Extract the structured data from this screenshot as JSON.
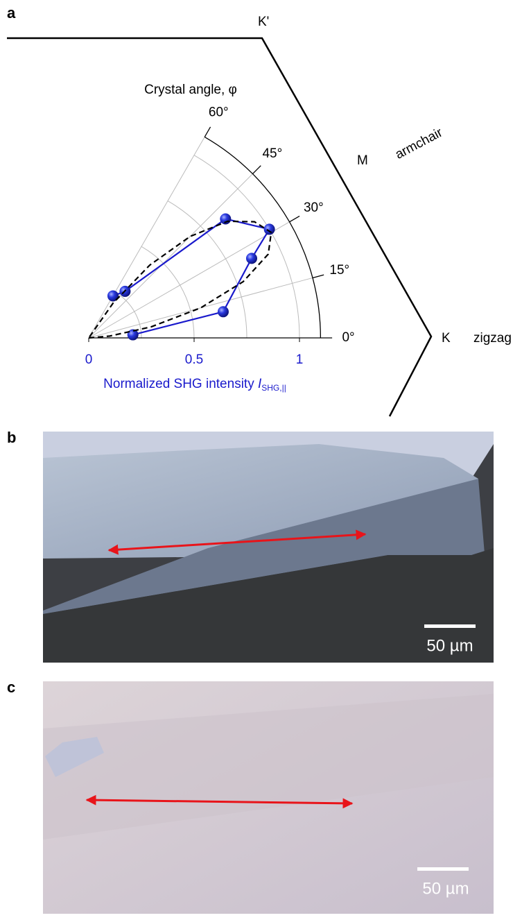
{
  "panel_a": {
    "label": "a",
    "hexagon": {
      "k_prime": "K'",
      "m": "M",
      "armchair": "armchair",
      "k": "K",
      "zigzag": "zigzag"
    },
    "chart_data": {
      "type": "polar",
      "title": "Crystal angle, φ",
      "x_label": "Normalized SHG intensity ",
      "x_label_symbol": "I",
      "x_label_subscript": "SHG,||",
      "rlim": [
        0,
        1.1
      ],
      "rticks": [
        0,
        0.5,
        1
      ],
      "rgrid": [
        0.25,
        0.5,
        0.75,
        1
      ],
      "thetalim": [
        0,
        60
      ],
      "thetaticks": [
        {
          "value": 0,
          "label": "0°"
        },
        {
          "value": 15,
          "label": "15°"
        },
        {
          "value": 30,
          "label": "30°"
        },
        {
          "value": 45,
          "label": "45°"
        },
        {
          "value": 60,
          "label": "60°"
        }
      ],
      "grid": true,
      "axis_color": "#1a1acc",
      "series": [
        {
          "color": "#1a1acc",
          "style": "markers",
          "theta": [
            4,
            11,
            26,
            31,
            41,
            52,
            60
          ],
          "r": [
            0.21,
            0.65,
            0.86,
            1.0,
            0.86,
            0.28,
            0.23
          ]
        },
        {
          "color": "#000000",
          "style": "dashed",
          "theta": [
            0,
            5,
            10,
            15,
            20,
            25,
            30,
            35,
            40,
            45,
            50,
            55,
            60
          ],
          "r": [
            0,
            0.1,
            0.3,
            0.55,
            0.78,
            0.94,
            1.0,
            0.96,
            0.86,
            0.68,
            0.45,
            0.2,
            0
          ]
        }
      ]
    }
  },
  "panel_b": {
    "label": "b",
    "scale_bar": "50 µm"
  },
  "panel_c": {
    "label": "c",
    "scale_bar": "50 µm"
  }
}
